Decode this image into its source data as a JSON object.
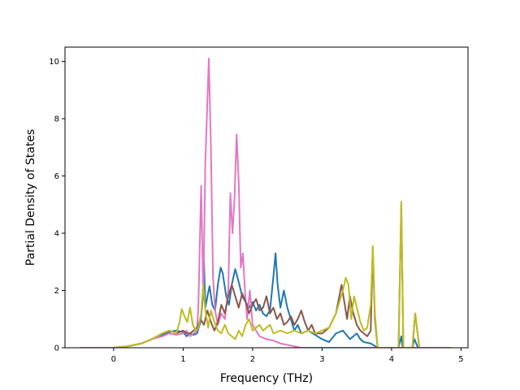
{
  "chart_data": {
    "type": "line",
    "title": "",
    "xlabel": "Frequency (THz)",
    "ylabel": "Partial Density of States",
    "xlim": [
      -0.7,
      5.1
    ],
    "ylim": [
      0,
      10.5
    ],
    "grid": false,
    "x_ticks": [
      0,
      1,
      2,
      3,
      4,
      5
    ],
    "y_ticks": [
      0,
      2,
      4,
      6,
      8,
      10
    ],
    "series": [
      {
        "color": "#1f77b4",
        "points": [
          [
            -0.48,
            0
          ],
          [
            0,
            0
          ],
          [
            0.2,
            0.05
          ],
          [
            0.4,
            0.15
          ],
          [
            0.55,
            0.3
          ],
          [
            0.7,
            0.45
          ],
          [
            0.8,
            0.55
          ],
          [
            0.9,
            0.6
          ],
          [
            1.0,
            0.55
          ],
          [
            1.05,
            0.4
          ],
          [
            1.1,
            0.5
          ],
          [
            1.15,
            0.45
          ],
          [
            1.2,
            0.5
          ],
          [
            1.25,
            0.9
          ],
          [
            1.28,
            1.6
          ],
          [
            1.3,
            3.05
          ],
          [
            1.32,
            1.4
          ],
          [
            1.35,
            1.8
          ],
          [
            1.38,
            2.15
          ],
          [
            1.42,
            1.5
          ],
          [
            1.46,
            1.3
          ],
          [
            1.5,
            2.2
          ],
          [
            1.54,
            2.8
          ],
          [
            1.57,
            2.6
          ],
          [
            1.62,
            1.8
          ],
          [
            1.66,
            1.5
          ],
          [
            1.7,
            2.2
          ],
          [
            1.75,
            2.75
          ],
          [
            1.8,
            2.3
          ],
          [
            1.85,
            1.8
          ],
          [
            1.9,
            1.6
          ],
          [
            1.95,
            1.4
          ],
          [
            2.0,
            1.6
          ],
          [
            2.05,
            1.3
          ],
          [
            2.1,
            1.5
          ],
          [
            2.15,
            1.2
          ],
          [
            2.2,
            1.1
          ],
          [
            2.25,
            1.3
          ],
          [
            2.3,
            2.5
          ],
          [
            2.33,
            3.3
          ],
          [
            2.36,
            2.2
          ],
          [
            2.4,
            1.4
          ],
          [
            2.45,
            2.0
          ],
          [
            2.5,
            1.4
          ],
          [
            2.55,
            1.0
          ],
          [
            2.6,
            0.6
          ],
          [
            2.65,
            0.8
          ],
          [
            2.7,
            0.5
          ],
          [
            2.8,
            0.6
          ],
          [
            2.9,
            0.45
          ],
          [
            3.0,
            0.3
          ],
          [
            3.1,
            0.2
          ],
          [
            3.2,
            0.5
          ],
          [
            3.3,
            0.6
          ],
          [
            3.4,
            0.3
          ],
          [
            3.5,
            0.5
          ],
          [
            3.55,
            0.3
          ],
          [
            3.6,
            0.2
          ],
          [
            3.7,
            0.15
          ],
          [
            3.8,
            0
          ],
          [
            4.1,
            0
          ],
          [
            4.14,
            0.4
          ],
          [
            4.16,
            0
          ],
          [
            4.3,
            0
          ],
          [
            4.33,
            0.3
          ],
          [
            4.38,
            0
          ],
          [
            4.85,
            0
          ]
        ]
      },
      {
        "color": "#e377c2",
        "points": [
          [
            -0.48,
            0
          ],
          [
            0,
            0
          ],
          [
            0.2,
            0.05
          ],
          [
            0.4,
            0.15
          ],
          [
            0.55,
            0.3
          ],
          [
            0.7,
            0.4
          ],
          [
            0.8,
            0.5
          ],
          [
            0.9,
            0.45
          ],
          [
            1.0,
            0.5
          ],
          [
            1.05,
            0.6
          ],
          [
            1.1,
            0.4
          ],
          [
            1.15,
            0.5
          ],
          [
            1.2,
            0.6
          ],
          [
            1.22,
            1.5
          ],
          [
            1.26,
            5.65
          ],
          [
            1.29,
            1.8
          ],
          [
            1.32,
            6.5
          ],
          [
            1.37,
            10.1
          ],
          [
            1.4,
            7.0
          ],
          [
            1.43,
            2.5
          ],
          [
            1.46,
            1.3
          ],
          [
            1.5,
            0.8
          ],
          [
            1.55,
            1.2
          ],
          [
            1.6,
            1.0
          ],
          [
            1.65,
            2.0
          ],
          [
            1.68,
            5.4
          ],
          [
            1.71,
            4.0
          ],
          [
            1.74,
            5.2
          ],
          [
            1.77,
            7.45
          ],
          [
            1.8,
            5.8
          ],
          [
            1.83,
            2.8
          ],
          [
            1.86,
            3.3
          ],
          [
            1.89,
            2.0
          ],
          [
            1.92,
            1.0
          ],
          [
            1.96,
            2.0
          ],
          [
            2.0,
            0.8
          ],
          [
            2.05,
            0.6
          ],
          [
            2.1,
            0.4
          ],
          [
            2.2,
            0.3
          ],
          [
            2.3,
            0.25
          ],
          [
            2.4,
            0.15
          ],
          [
            2.5,
            0.1
          ],
          [
            2.6,
            0.05
          ],
          [
            2.7,
            0
          ],
          [
            4.85,
            0
          ]
        ]
      },
      {
        "color": "#8c564b",
        "points": [
          [
            -0.48,
            0
          ],
          [
            0,
            0
          ],
          [
            0.2,
            0.05
          ],
          [
            0.4,
            0.15
          ],
          [
            0.55,
            0.3
          ],
          [
            0.7,
            0.5
          ],
          [
            0.8,
            0.6
          ],
          [
            0.9,
            0.5
          ],
          [
            1.0,
            0.6
          ],
          [
            1.05,
            0.5
          ],
          [
            1.1,
            0.5
          ],
          [
            1.2,
            0.7
          ],
          [
            1.25,
            1.0
          ],
          [
            1.3,
            0.8
          ],
          [
            1.35,
            1.3
          ],
          [
            1.4,
            0.9
          ],
          [
            1.45,
            0.6
          ],
          [
            1.5,
            0.9
          ],
          [
            1.55,
            1.5
          ],
          [
            1.6,
            1.2
          ],
          [
            1.65,
            1.8
          ],
          [
            1.7,
            2.2
          ],
          [
            1.75,
            1.8
          ],
          [
            1.8,
            1.4
          ],
          [
            1.85,
            1.9
          ],
          [
            1.9,
            1.6
          ],
          [
            1.95,
            1.2
          ],
          [
            2.0,
            1.5
          ],
          [
            2.05,
            1.7
          ],
          [
            2.1,
            1.3
          ],
          [
            2.15,
            1.4
          ],
          [
            2.2,
            1.8
          ],
          [
            2.25,
            1.2
          ],
          [
            2.3,
            1.4
          ],
          [
            2.35,
            1.0
          ],
          [
            2.4,
            1.2
          ],
          [
            2.45,
            0.8
          ],
          [
            2.5,
            0.9
          ],
          [
            2.55,
            1.1
          ],
          [
            2.6,
            0.8
          ],
          [
            2.65,
            1.0
          ],
          [
            2.7,
            1.3
          ],
          [
            2.75,
            0.9
          ],
          [
            2.8,
            0.6
          ],
          [
            2.85,
            0.8
          ],
          [
            2.9,
            0.5
          ],
          [
            3.0,
            0.5
          ],
          [
            3.1,
            0.7
          ],
          [
            3.2,
            1.2
          ],
          [
            3.28,
            2.2
          ],
          [
            3.32,
            1.6
          ],
          [
            3.36,
            1.0
          ],
          [
            3.4,
            1.8
          ],
          [
            3.45,
            1.2
          ],
          [
            3.5,
            0.8
          ],
          [
            3.55,
            0.6
          ],
          [
            3.6,
            0.5
          ],
          [
            3.65,
            0.4
          ],
          [
            3.7,
            0.6
          ],
          [
            3.73,
            3.5
          ],
          [
            3.76,
            1.0
          ],
          [
            3.8,
            0
          ],
          [
            4.1,
            0
          ],
          [
            4.14,
            5.0
          ],
          [
            4.17,
            0
          ],
          [
            4.3,
            0
          ],
          [
            4.34,
            1.2
          ],
          [
            4.4,
            0
          ],
          [
            4.85,
            0
          ]
        ]
      },
      {
        "color": "#bcbd22",
        "points": [
          [
            -0.48,
            0
          ],
          [
            0,
            0
          ],
          [
            0.2,
            0.05
          ],
          [
            0.4,
            0.15
          ],
          [
            0.55,
            0.3
          ],
          [
            0.7,
            0.5
          ],
          [
            0.8,
            0.6
          ],
          [
            0.9,
            0.5
          ],
          [
            0.95,
            0.9
          ],
          [
            0.98,
            1.35
          ],
          [
            1.02,
            1.1
          ],
          [
            1.06,
            0.9
          ],
          [
            1.1,
            1.4
          ],
          [
            1.14,
            0.8
          ],
          [
            1.18,
            0.6
          ],
          [
            1.22,
            0.7
          ],
          [
            1.26,
            1.2
          ],
          [
            1.29,
            2.2
          ],
          [
            1.32,
            1.3
          ],
          [
            1.36,
            0.7
          ],
          [
            1.4,
            1.3
          ],
          [
            1.45,
            0.9
          ],
          [
            1.5,
            0.6
          ],
          [
            1.55,
            0.5
          ],
          [
            1.6,
            0.8
          ],
          [
            1.65,
            0.5
          ],
          [
            1.7,
            0.4
          ],
          [
            1.75,
            0.3
          ],
          [
            1.8,
            0.6
          ],
          [
            1.85,
            0.4
          ],
          [
            1.9,
            0.8
          ],
          [
            1.95,
            1.0
          ],
          [
            2.0,
            0.6
          ],
          [
            2.05,
            0.7
          ],
          [
            2.1,
            0.8
          ],
          [
            2.15,
            0.6
          ],
          [
            2.2,
            0.7
          ],
          [
            2.25,
            0.8
          ],
          [
            2.3,
            0.5
          ],
          [
            2.4,
            0.6
          ],
          [
            2.5,
            0.5
          ],
          [
            2.6,
            0.6
          ],
          [
            2.7,
            0.5
          ],
          [
            2.8,
            0.6
          ],
          [
            2.9,
            0.5
          ],
          [
            3.0,
            0.6
          ],
          [
            3.1,
            0.7
          ],
          [
            3.2,
            1.2
          ],
          [
            3.3,
            2.0
          ],
          [
            3.34,
            2.45
          ],
          [
            3.38,
            2.2
          ],
          [
            3.42,
            1.0
          ],
          [
            3.46,
            1.8
          ],
          [
            3.5,
            1.4
          ],
          [
            3.55,
            0.9
          ],
          [
            3.6,
            0.6
          ],
          [
            3.65,
            0.7
          ],
          [
            3.7,
            1.5
          ],
          [
            3.73,
            3.55
          ],
          [
            3.76,
            1.2
          ],
          [
            3.8,
            0
          ],
          [
            4.1,
            0
          ],
          [
            4.14,
            5.1
          ],
          [
            4.17,
            0
          ],
          [
            4.3,
            0
          ],
          [
            4.34,
            1.2
          ],
          [
            4.4,
            0
          ],
          [
            4.85,
            0
          ]
        ]
      }
    ]
  }
}
